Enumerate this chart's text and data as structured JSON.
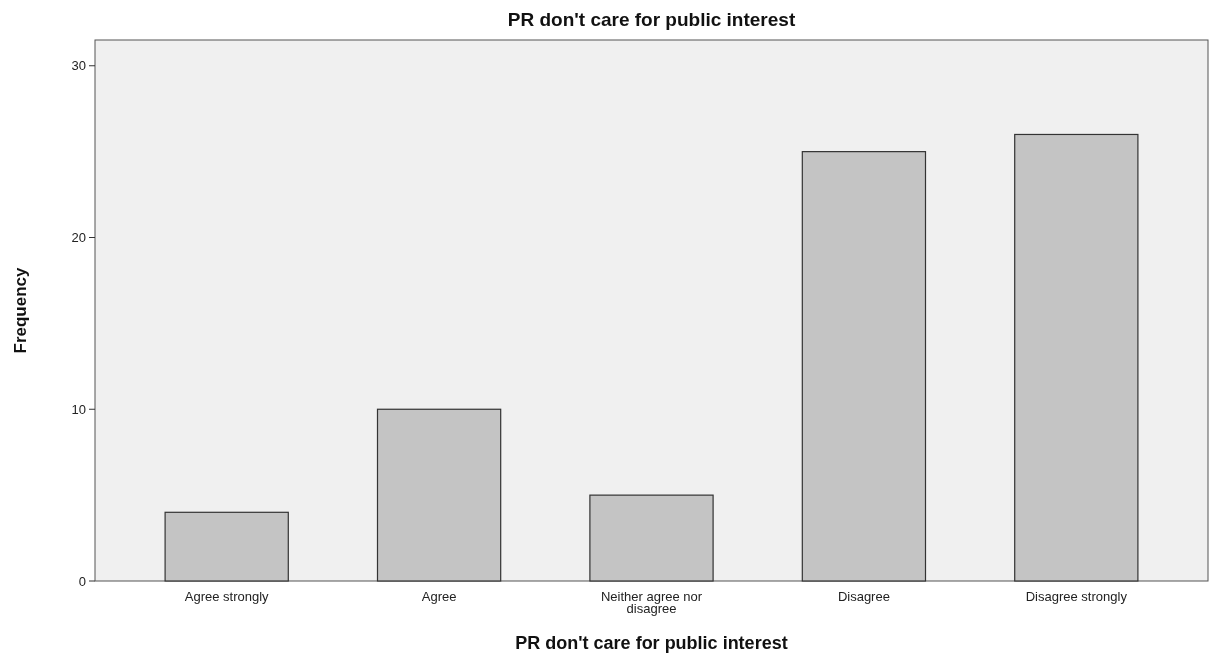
{
  "chart_data": {
    "type": "bar",
    "title": "PR don't care for public interest",
    "xlabel": "PR don't care for public interest",
    "ylabel": "Frequency",
    "categories": [
      "Agree strongly",
      "Agree",
      "Neither agree nor disagree",
      "Disagree",
      "Disagree strongly"
    ],
    "values": [
      4,
      10,
      5,
      25,
      26
    ],
    "color": "#c4c4c4",
    "ylim": [
      0,
      31.5
    ],
    "yticks": [
      0,
      10,
      20,
      30
    ],
    "grid": false
  }
}
